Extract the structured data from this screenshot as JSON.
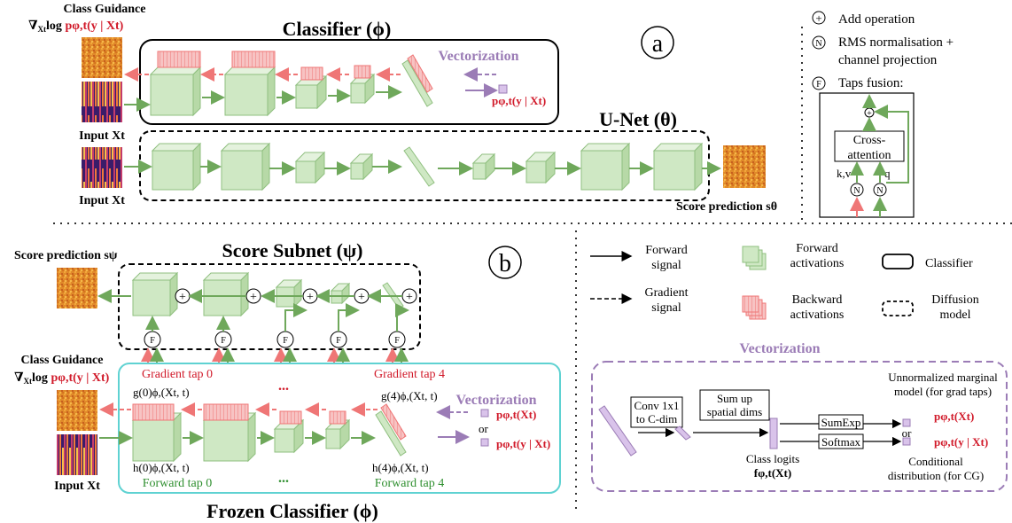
{
  "colors": {
    "forward": "#6fa85b",
    "backward": "#ef7676",
    "vectorization": "#9b7cb6",
    "red_text": "#d11a2a",
    "green_text": "#2f8f2f",
    "frozen_border": "#5fd2d2",
    "block_fill": "#cfe8c4",
    "block_side": "#b7d9a7",
    "back_fill": "#f7c3c3"
  },
  "top": {
    "guidance_title": "Class Guidance",
    "guidance_formula_prefix": "∇",
    "guidance_formula_sub": "Xt",
    "guidance_formula_mid": "log",
    "guidance_formula_red": "pφ,t(y | Xt)",
    "input_label_1": "Input Xt",
    "input_label_2": "Input Xt",
    "classifier_title": "Classifier (ϕ)",
    "vectorization_label": "Vectorization",
    "classifier_output": "pφ,t(y | Xt)",
    "unet_title": "U-Net (θ)",
    "score_prediction": "Score prediction sθ",
    "panel_marker": "a"
  },
  "legend_top": {
    "add_symbol": "+",
    "add_text": "Add operation",
    "rms_symbol": "N",
    "rms_text_1": "RMS normalisation +",
    "rms_text_2": "channel projection",
    "taps_symbol": "F",
    "taps_text": "Taps fusion:",
    "cross_attention_1": "Cross-",
    "cross_attention_2": "attention",
    "kv_label": "k,v",
    "q_label": "q"
  },
  "bottom": {
    "score_prediction": "Score prediction sψ",
    "subnet_title": "Score Subnet (ψ)",
    "panel_marker": "b",
    "guidance_title": "Class Guidance",
    "guidance_formula_prefix": "∇",
    "guidance_formula_sub": "Xt",
    "guidance_formula_mid": "log",
    "guidance_formula_red": "pφ,t(y | Xt)",
    "input_label": "Input Xt",
    "gradient_tap_0": "Gradient tap 0",
    "gradient_tap_4": "Gradient tap 4",
    "grad_g0": "g(0)ϕ,(Xt, t)",
    "grad_g4": "g(4)ϕ,(Xt, t)",
    "ellipsis_red": "...",
    "ellipsis_green": "...",
    "fwd_h0": "h(0)ϕ,(Xt, t)",
    "fwd_h4": "h(4)ϕ,(Xt, t)",
    "forward_tap_0": "Forward tap 0",
    "forward_tap_4": "Forward tap 4",
    "vectorization_label": "Vectorization",
    "out_marginal": "pφ,t(Xt)",
    "out_or": "or",
    "out_conditional": "pφ,t(y | Xt)",
    "frozen_title": "Frozen Classifier (ϕ)",
    "fusion_symbol": "F",
    "add_symbol": "+"
  },
  "legend_bottom": {
    "forward_signal": [
      "Forward",
      "signal"
    ],
    "gradient_signal": [
      "Gradient",
      "signal"
    ],
    "forward_activations": [
      "Forward",
      "activations"
    ],
    "backward_activations": [
      "Backward",
      "activations"
    ],
    "classifier": "Classifier",
    "diffusion_model": [
      "Diffusion",
      "model"
    ]
  },
  "vectorization_detail": {
    "title": "Vectorization",
    "conv": [
      "Conv 1x1",
      "to C-dim"
    ],
    "sum": [
      "Sum up",
      "spatial dims"
    ],
    "logits_1": "Class logits",
    "logits_2": "fφ,t(Xt)",
    "sumexp": "SumExp",
    "softmax": "Softmax",
    "or": "or",
    "unnorm_1": "Unnormalized marginal",
    "unnorm_2": "model (for grad taps)",
    "marginal": "pφ,t(Xt)",
    "conditional": "pφ,t(y | Xt)",
    "cond_1": "Conditional",
    "cond_2": "distribution (for CG)"
  }
}
